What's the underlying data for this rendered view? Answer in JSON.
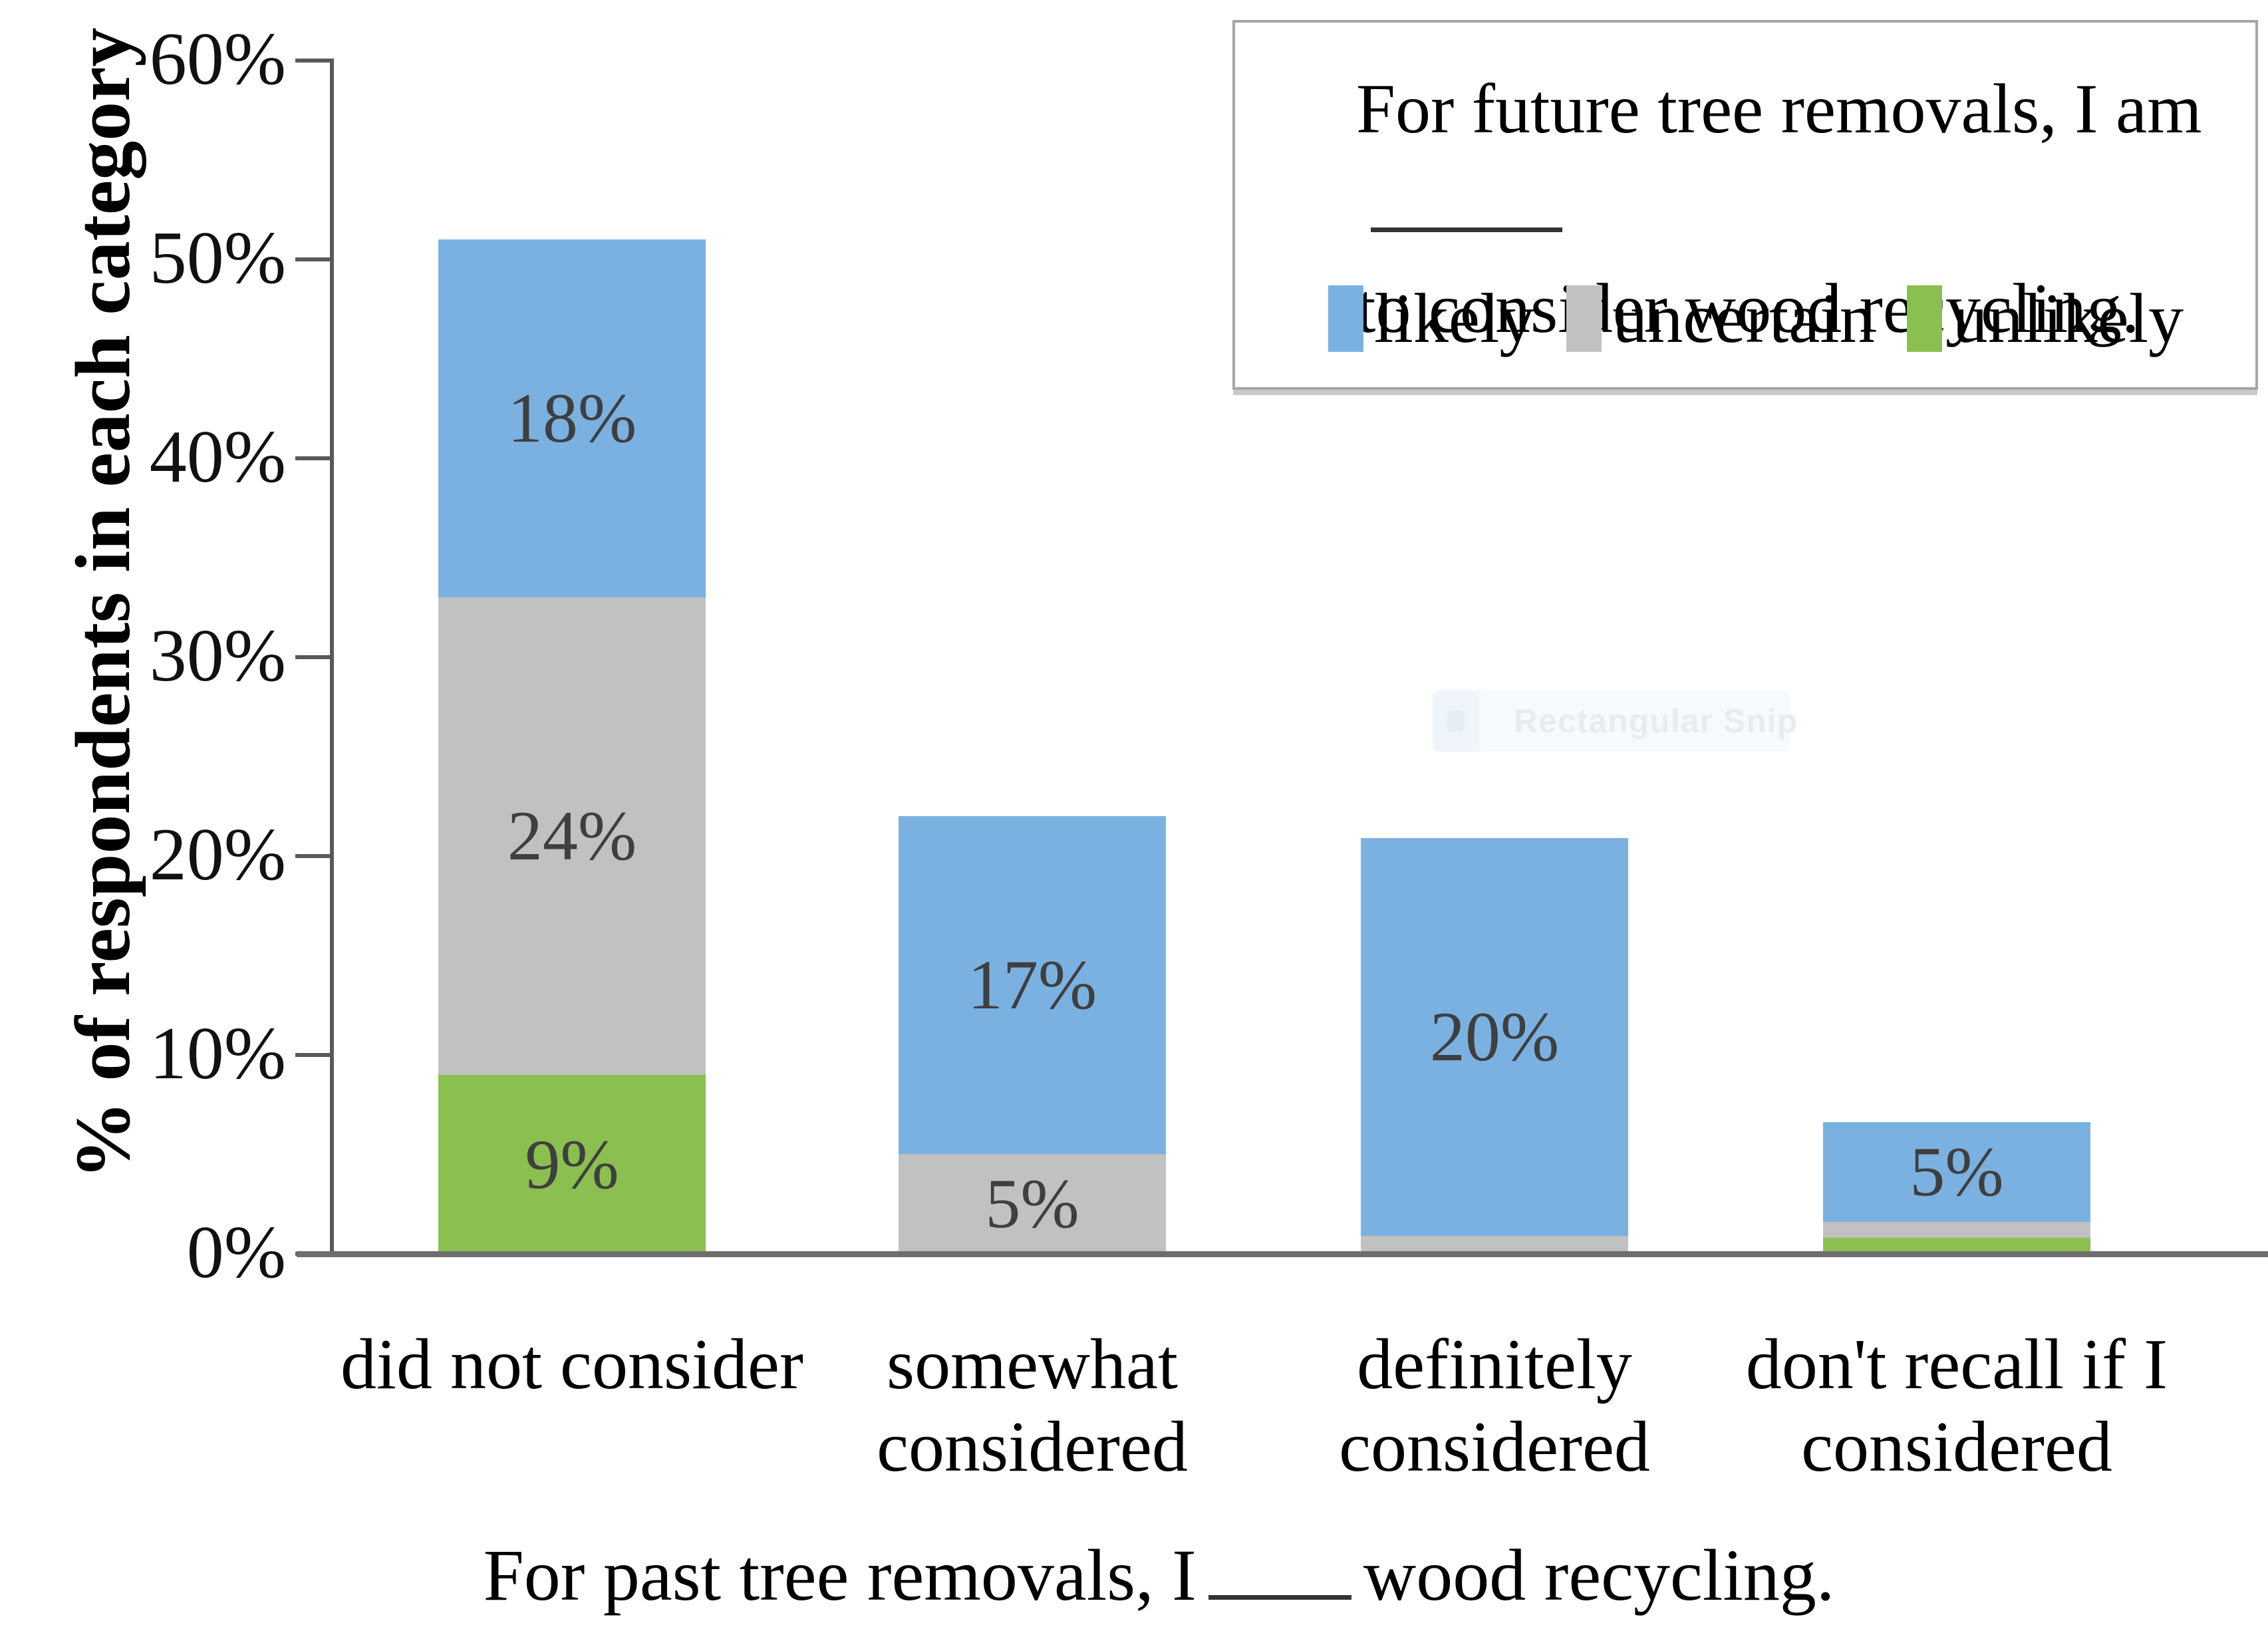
{
  "chart_data": {
    "type": "bar",
    "subtype": "stacked-vertical",
    "ylabel": "% of respondents in each category",
    "xlabel_before_blank": "For past tree removals, I",
    "xlabel_after_blank": "wood recycling.",
    "xlabel_full": "For past tree removals, I _____ wood recycling.",
    "ylim": [
      0,
      60
    ],
    "grid": "off",
    "y_ticks": [
      "60%",
      "50%",
      "40%",
      "30%",
      "20%",
      "10%",
      "0%"
    ],
    "categories": [
      "did not consider",
      "somewhat considered",
      "definitely considered",
      "don't recall if I considered"
    ],
    "category_label_lines": [
      [
        "did not consider"
      ],
      [
        "somewhat",
        "considered"
      ],
      [
        "definitely",
        "considered"
      ],
      [
        "don't recall if I",
        "considered"
      ]
    ],
    "series": [
      {
        "name": "likely",
        "color": "#7AB1E1",
        "values": [
          18,
          17,
          20,
          5
        ],
        "labels": [
          "18%",
          "17%",
          "20%",
          "5%"
        ]
      },
      {
        "name": "uncertain",
        "color": "#C1C1C1",
        "values": [
          24,
          5,
          0.9,
          0.8
        ],
        "labels": [
          "24%",
          "5%",
          "",
          ""
        ]
      },
      {
        "name": "unlikely",
        "color": "#8BBF50",
        "values": [
          9,
          0,
          0,
          0.8
        ],
        "labels": [
          "9%",
          "",
          "",
          ""
        ]
      }
    ],
    "stack_order_bottom_to_top": [
      "unlikely",
      "uncertain",
      "likely"
    ],
    "legend_position": "top-right boxed"
  },
  "legend": {
    "title_line1": "For future tree removals, I am",
    "title_line2": "to consider wood recycling.",
    "items": [
      "likely",
      "uncertain",
      "unlikely"
    ]
  },
  "axis": {
    "y_title": "% of respondents in each category"
  },
  "x_title": {
    "before": "For past tree removals, I",
    "after": "wood recycling."
  },
  "watermark": {
    "text": "Rectangular Snip"
  }
}
